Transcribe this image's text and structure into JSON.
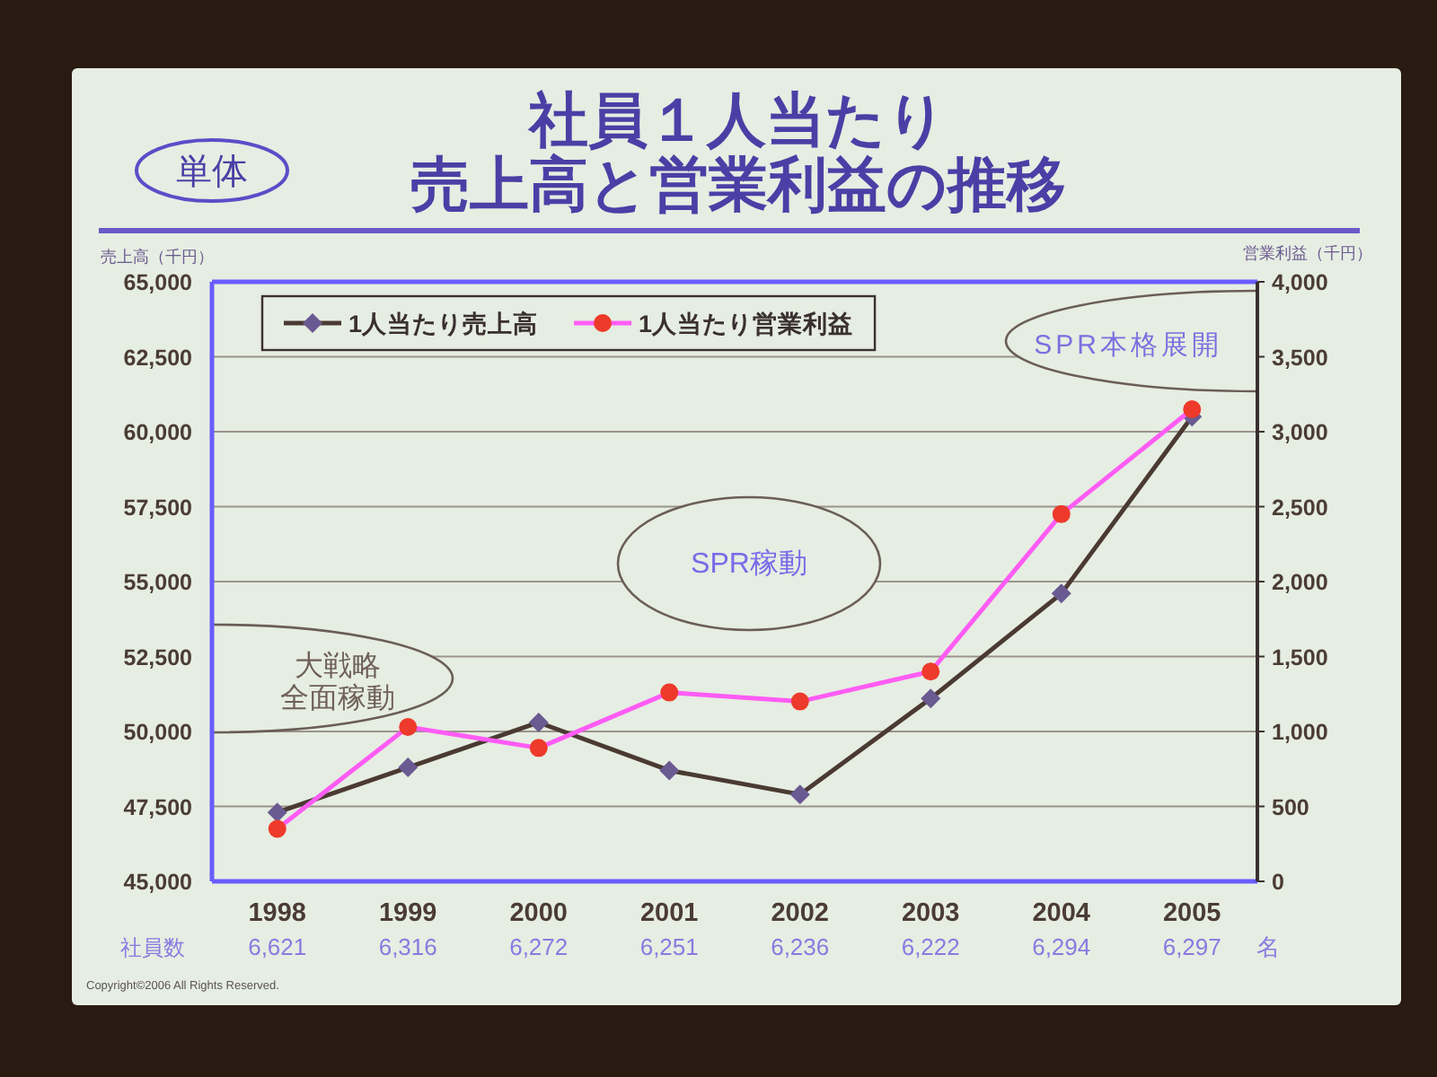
{
  "chart_data": {
    "type": "line",
    "title": "社員１人当たり売上高と営業利益の推移",
    "subtitle": "単体",
    "ylabel": "売上高（千円）",
    "y2label": "営業利益（千円）",
    "categories": [
      "1998",
      "1999",
      "2000",
      "2001",
      "2002",
      "2003",
      "2004",
      "2005"
    ],
    "series": [
      {
        "name": "1人当たり売上高",
        "color": "#4a3a32",
        "colors": [
          "#6a5a92",
          "#6a5a92",
          "#6a5a92",
          "#6a5a92",
          "#6a5a92",
          "#6a5a92",
          "#6a5a92",
          "#6a5a92"
        ],
        "marker": "diamond",
        "values": [
          47300,
          48800,
          50300,
          48700,
          47900,
          51100,
          54600,
          60500
        ]
      },
      {
        "name": "1人当たり営業利益",
        "color": "#ff5cf5",
        "colors": [
          "#ee3a2a",
          "#ee3a2a",
          "#ee3a2a",
          "#ee3a2a",
          "#ee3a2a",
          "#ee3a2a",
          "#ee3a2a",
          "#ee3a2a"
        ],
        "marker": "circle",
        "axis": "y2",
        "values": [
          350,
          1030,
          890,
          1260,
          1200,
          1400,
          2450,
          3150
        ]
      }
    ],
    "ylim": [
      45000,
      65000
    ],
    "yticks": [
      {
        "value": 45000,
        "label": "45,000"
      },
      {
        "value": 47500,
        "label": "47,500"
      },
      {
        "value": 50000,
        "label": "50,000"
      },
      {
        "value": 52500,
        "label": "52,500"
      },
      {
        "value": 55000,
        "label": "55,000"
      },
      {
        "value": 57500,
        "label": "57,500"
      },
      {
        "value": 60000,
        "label": "60,000"
      },
      {
        "value": 62500,
        "label": "62,500"
      },
      {
        "value": 65000,
        "label": "65,000"
      }
    ],
    "y2lim": [
      0,
      4000
    ],
    "y2ticks": [
      0,
      500,
      {
        "value": 1000,
        "label": "1,000"
      },
      {
        "value": 1500,
        "label": "1,500"
      },
      {
        "value": 2000,
        "label": "2,000"
      },
      {
        "value": 2500,
        "label": "2,500"
      },
      {
        "value": 3000,
        "label": "3,000"
      },
      {
        "value": 3500,
        "label": "3,500"
      },
      {
        "value": 4000,
        "label": "4,000"
      }
    ],
    "grid": "y",
    "legend": "top left",
    "annotations": [
      "大戦略全面稼動",
      "SPR稼動",
      "SPR本格展開",
      "社員数",
      "6,621",
      "6,316",
      "6,272",
      "6,251",
      "6,236",
      "6,222",
      "6,294",
      "6,297",
      "名",
      "Copyright©2006 All Rights Reserved."
    ]
  }
}
